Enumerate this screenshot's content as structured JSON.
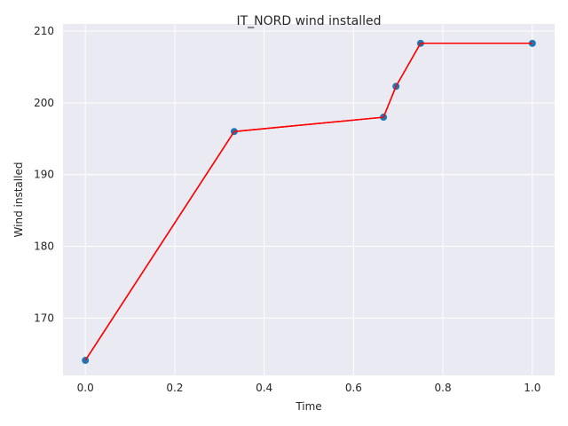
{
  "chart_data": {
    "type": "line",
    "title": "IT_NORD wind installed",
    "xlabel": "Time",
    "ylabel": "Wind installed",
    "xlim": [
      -0.05,
      1.05
    ],
    "ylim": [
      162,
      211
    ],
    "xticks": [
      0.0,
      0.2,
      0.4,
      0.6,
      0.8,
      1.0
    ],
    "xtick_labels": [
      "0.0",
      "0.2",
      "0.4",
      "0.6",
      "0.8",
      "1.0"
    ],
    "yticks": [
      170,
      180,
      190,
      200,
      210
    ],
    "ytick_labels": [
      "170",
      "180",
      "190",
      "200",
      "210"
    ],
    "grid": true,
    "background": "#eaeaf2",
    "series": [
      {
        "x": [
          0.0,
          0.333,
          0.667,
          0.695,
          0.75,
          1.0
        ],
        "y": [
          164.1,
          196.0,
          198.0,
          202.3,
          208.3,
          208.3
        ],
        "line_color": "#ff0000",
        "marker_color": "#1f77b4"
      }
    ]
  }
}
